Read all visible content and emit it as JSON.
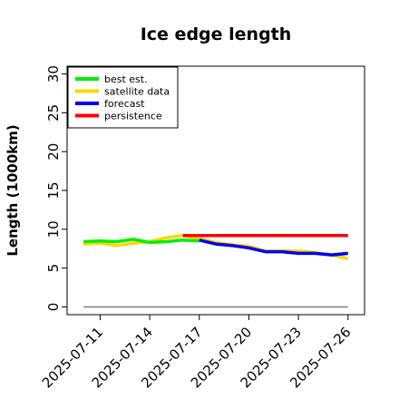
{
  "chart_data": {
    "type": "line",
    "title": "Ice edge length",
    "xlabel": "",
    "ylabel": "Length (1000km)",
    "ylim": [
      -1,
      31
    ],
    "xlim": [
      "2025-07-09",
      "2025-07-27"
    ],
    "yticks": [
      0,
      5,
      10,
      15,
      20,
      25,
      30
    ],
    "xticks": [
      "2025-07-11",
      "2025-07-14",
      "2025-07-17",
      "2025-07-20",
      "2025-07-23",
      "2025-07-26"
    ],
    "highlighted_xtick": "2025-07-17",
    "highlight_color": "#228b22",
    "legend_position": "top-left",
    "grid": false,
    "baseline": {
      "y": 0,
      "x": [
        "2025-07-10",
        "2025-07-26"
      ],
      "color": "#808080"
    },
    "series": [
      {
        "name": "best est.",
        "color": "#00ee00",
        "x": [
          "2025-07-10",
          "2025-07-11",
          "2025-07-12",
          "2025-07-13",
          "2025-07-14",
          "2025-07-15",
          "2025-07-16",
          "2025-07-17"
        ],
        "values": [
          8.4,
          8.5,
          8.4,
          8.7,
          8.3,
          8.4,
          8.6,
          8.5
        ]
      },
      {
        "name": "satellite data",
        "color": "#ffd700",
        "x": [
          "2025-07-10",
          "2025-07-11",
          "2025-07-12",
          "2025-07-13",
          "2025-07-14",
          "2025-07-15",
          "2025-07-16",
          "2025-07-17",
          "2025-07-18",
          "2025-07-19",
          "2025-07-20",
          "2025-07-21",
          "2025-07-22",
          "2025-07-23",
          "2025-07-24",
          "2025-07-25",
          "2025-07-26"
        ],
        "values": [
          8.1,
          8.2,
          7.9,
          8.2,
          8.4,
          8.9,
          9.2,
          8.8,
          8.3,
          8.0,
          7.8,
          7.2,
          7.2,
          7.2,
          7.0,
          6.7,
          6.2
        ]
      },
      {
        "name": "forecast",
        "color": "#0000ee",
        "x": [
          "2025-07-17",
          "2025-07-18",
          "2025-07-19",
          "2025-07-20",
          "2025-07-21",
          "2025-07-22",
          "2025-07-23",
          "2025-07-24",
          "2025-07-25",
          "2025-07-26"
        ],
        "values": [
          8.6,
          8.1,
          7.9,
          7.6,
          7.1,
          7.1,
          6.9,
          6.9,
          6.7,
          6.9
        ]
      },
      {
        "name": "persistence",
        "color": "#ff0000",
        "x": [
          "2025-07-16",
          "2025-07-26"
        ],
        "values": [
          9.2,
          9.2
        ]
      }
    ]
  }
}
